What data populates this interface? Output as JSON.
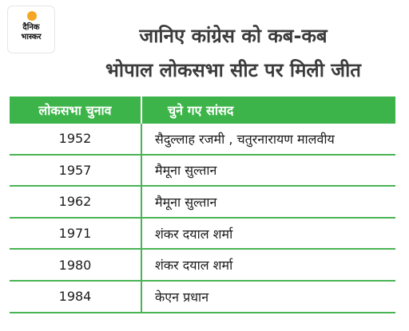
{
  "logo": {
    "line1": "दैनिक",
    "line2": "भास्कर"
  },
  "title": {
    "line1": "जानिए कांग्रेस को कब-कब",
    "line2": "भोपाल लोकसभा सीट पर मिली जीत"
  },
  "table": {
    "headers": [
      "लोकसभा चुनाव",
      "चुने गए सांसद"
    ],
    "rows": [
      {
        "year": "1952",
        "mp": "सैदुल्लाह रजमी , चतुरनारायण मालवीय"
      },
      {
        "year": "1957",
        "mp": "मैमूना सुल्तान"
      },
      {
        "year": "1962",
        "mp": "मैमूना सुल्तान"
      },
      {
        "year": "1971",
        "mp": "शंकर दयाल शर्मा"
      },
      {
        "year": "1980",
        "mp": "शंकर दयाल शर्मा"
      },
      {
        "year": "1984",
        "mp": "केएन प्रधान"
      }
    ]
  },
  "colors": {
    "header_bg": "#3db44a",
    "grid": "#49b453",
    "logo_sun": "#f5a623"
  }
}
